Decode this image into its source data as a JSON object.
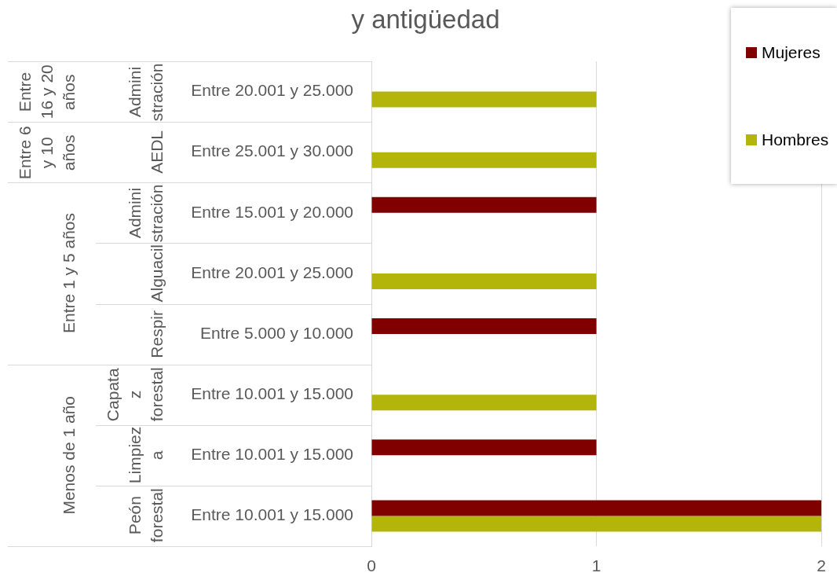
{
  "chart_data": {
    "type": "bar",
    "orientation": "horizontal",
    "title": "y antigüedad",
    "categories": [
      "Entre 20.001 y 25.000",
      "Entre 25.001 y 30.000",
      "Entre 15.001 y 20.000",
      "Entre 20.001 y 25.000",
      "Entre 5.000 y 10.000",
      "Entre 10.001 y 15.000",
      "Entre 10.001 y 15.000",
      "Entre 10.001 y 15.000"
    ],
    "series": [
      {
        "name": "Mujeres",
        "color": "#800000",
        "values": [
          null,
          null,
          1,
          null,
          1,
          null,
          1,
          2
        ]
      },
      {
        "name": "Hombres",
        "color": "#b3b50b",
        "values": [
          1,
          1,
          null,
          1,
          null,
          1,
          null,
          2
        ]
      }
    ],
    "xlim": [
      0,
      2
    ],
    "xticks": [
      0,
      1,
      2
    ],
    "grid": "x",
    "legend": "top right",
    "annotations": [
      "Entre 16 y 20 años",
      "Entre 6 y 10 años",
      "Entre 1 y 5 años",
      "Menos de 1 año",
      "Administración",
      "AEDL",
      "Administración",
      "Alguacil",
      "Respir",
      "Capataz forestal",
      "Limpieza",
      "Peón forestal"
    ]
  }
}
